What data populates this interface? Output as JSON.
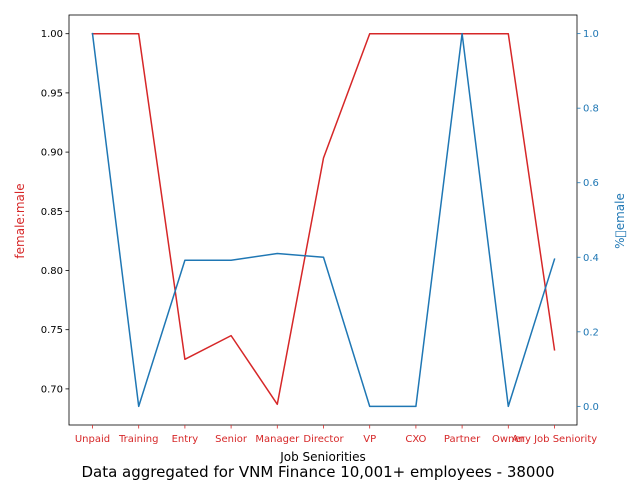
{
  "chart_data": {
    "type": "line",
    "caption": "Data aggregated for VNM Finance 10,001+ employees - 38000",
    "xlabel": "Job Seniorities",
    "categories": [
      "Unpaid",
      "Training",
      "Entry",
      "Senior",
      "Manager",
      "Director",
      "VP",
      "CXO",
      "Partner",
      "Owner",
      "Any Job Seniority"
    ],
    "colors": {
      "left": "#d62728",
      "right": "#1f77b4"
    },
    "left_axis": {
      "label": "female:male",
      "ylim": [
        0.6695,
        1.0158
      ],
      "ticks": [
        0.7,
        0.75,
        0.8,
        0.85,
        0.9,
        0.95,
        1.0
      ],
      "tick_labels": [
        "0.70",
        "0.75",
        "0.80",
        "0.85",
        "0.90",
        "0.95",
        "1.00"
      ]
    },
    "right_axis": {
      "label": "%\u0000emale",
      "ylim": [
        -0.05,
        1.05
      ],
      "ticks": [
        0.0,
        0.2,
        0.4,
        0.6,
        0.8,
        1.0
      ],
      "tick_labels": [
        "0.0",
        "0.2",
        "0.4",
        "0.6",
        "0.8",
        "1.0"
      ]
    },
    "series": [
      {
        "axis": "left",
        "values": [
          1.0,
          1.0,
          0.725,
          0.745,
          0.687,
          0.895,
          1.0,
          1.0,
          1.0,
          1.0,
          0.733
        ]
      },
      {
        "axis": "right",
        "values": [
          1.0,
          0.0,
          0.392,
          0.392,
          0.41,
          0.4,
          0.0,
          0.0,
          1.0,
          0.0,
          0.395
        ]
      }
    ]
  }
}
